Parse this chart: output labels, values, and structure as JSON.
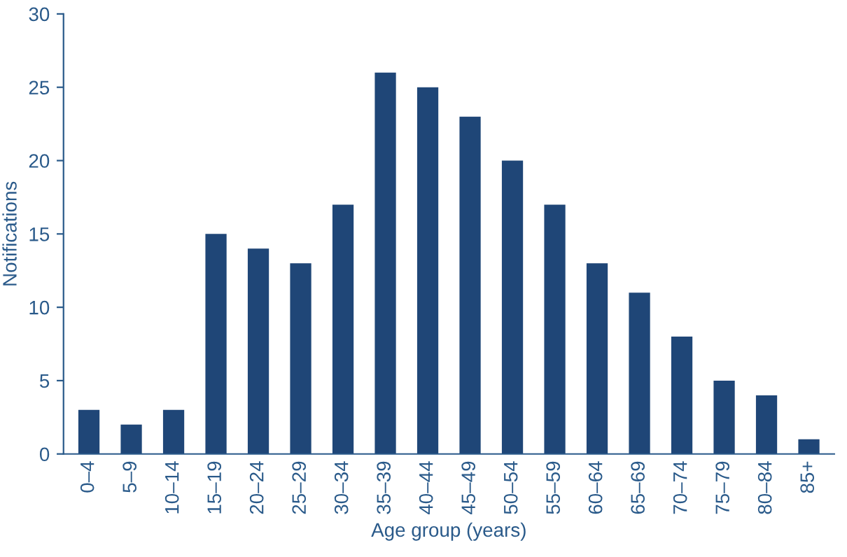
{
  "chart_data": {
    "type": "bar",
    "xlabel": "Age group (years)",
    "ylabel": "Notifications",
    "categories": [
      "0–4",
      "5–9",
      "10–14",
      "15–19",
      "20–24",
      "25–29",
      "30–34",
      "35–39",
      "40–44",
      "45–49",
      "50–54",
      "55–59",
      "60–64",
      "65–69",
      "70–74",
      "75–79",
      "80–84",
      "85+"
    ],
    "values": [
      3,
      2,
      3,
      15,
      14,
      13,
      17,
      26,
      25,
      23,
      20,
      17,
      13,
      11,
      8,
      5,
      4,
      1
    ],
    "color": "#1f4677",
    "ylim": [
      0,
      30
    ],
    "yticks": [
      0,
      5,
      10,
      15,
      20,
      25,
      30
    ],
    "grid": false,
    "legend": false
  }
}
